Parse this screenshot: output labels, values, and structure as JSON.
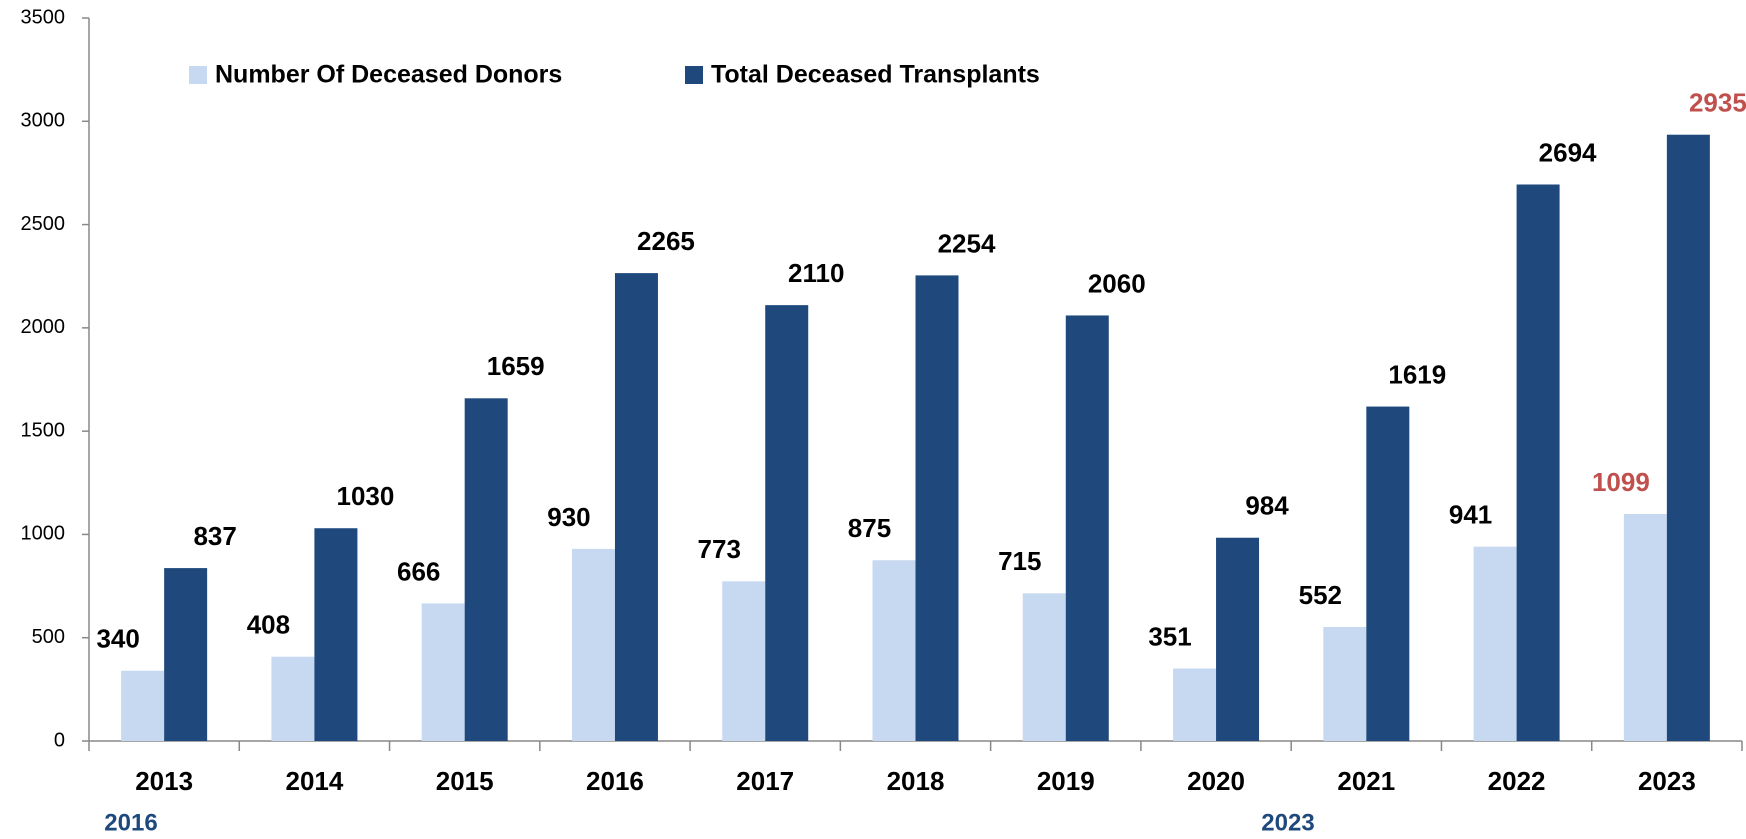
{
  "chart_data": {
    "type": "bar",
    "categories": [
      "2013",
      "2014",
      "2015",
      "2016",
      "2017",
      "2018",
      "2019",
      "2020",
      "2021",
      "2022",
      "2023"
    ],
    "series": [
      {
        "name": "Number Of Deceased Donors",
        "color": "#c6d9f1",
        "values": [
          340,
          408,
          666,
          930,
          773,
          875,
          715,
          351,
          552,
          941,
          1099
        ]
      },
      {
        "name": "Total Deceased Transplants",
        "color": "#1f497d",
        "values": [
          837,
          1030,
          1659,
          2265,
          2110,
          2254,
          2060,
          984,
          1619,
          2694,
          2935
        ]
      }
    ],
    "label_color": "#000000",
    "highlight": {
      "index": 10,
      "color": "#c0504d"
    },
    "ylim": [
      0,
      3500
    ],
    "yticks": [
      0,
      500,
      1000,
      1500,
      2000,
      2500,
      3000,
      3500
    ],
    "grid": false,
    "legend": "top",
    "annotations": [
      "2016",
      "2023"
    ]
  }
}
